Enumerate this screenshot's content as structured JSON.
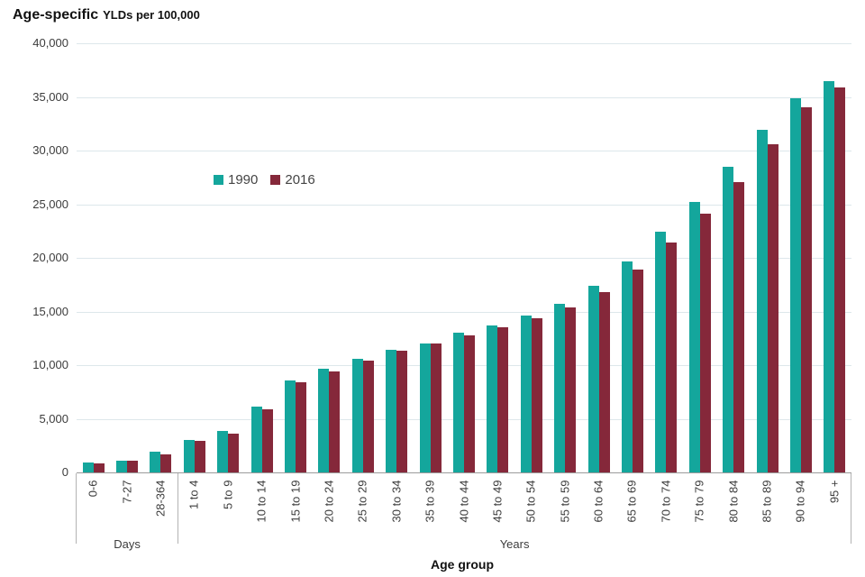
{
  "title": {
    "main": "Age-specific",
    "sub": "YLDs per 100,000"
  },
  "legend": [
    {
      "label": "1990",
      "color": "#14a69c"
    },
    {
      "label": "2016",
      "color": "#85283a"
    }
  ],
  "y_axis": {
    "ticks": [
      "40,000",
      "35,000",
      "30,000",
      "25,000",
      "20,000",
      "15,000",
      "10,000",
      "5,000",
      "0"
    ]
  },
  "x_axis": {
    "title": "Age group",
    "group_labels": [
      "Days",
      "Years"
    ]
  },
  "colors": {
    "series_1990": "#14a69c",
    "series_2016": "#85283a",
    "gridline": "#dde7eb",
    "axis_line": "#9b9b9b",
    "text": "#3c3c3c"
  },
  "chart_data": {
    "type": "bar",
    "title": "Age-specific YLDs per 100,000",
    "xlabel": "Age group",
    "ylabel": "YLDs per 100,000",
    "ylim": [
      0,
      40000
    ],
    "y_tick_step": 5000,
    "grid": "horizontal",
    "legend_position": "inside-upper-left",
    "categories": [
      "0-6",
      "7-27",
      "28-364",
      "1 to 4",
      "5 to 9",
      "10 to 14",
      "15 to 19",
      "20 to 24",
      "25 to 29",
      "30 to 34",
      "35 to 39",
      "40 to 44",
      "45 to 49",
      "50 to 54",
      "55 to 59",
      "60 to 64",
      "65 to 69",
      "70 to 74",
      "75 to 79",
      "80 to 84",
      "85 to 89",
      "90 to 94",
      "95 +"
    ],
    "category_groups": [
      {
        "label": "Days",
        "span": [
          0,
          2
        ]
      },
      {
        "label": "Years",
        "span": [
          3,
          22
        ]
      }
    ],
    "series": [
      {
        "name": "1990",
        "color": "#14a69c",
        "values": [
          950,
          1100,
          1900,
          3000,
          3850,
          6100,
          8600,
          9650,
          10600,
          11450,
          12050,
          13000,
          13700,
          14600,
          15700,
          17400,
          19700,
          22400,
          25200,
          28450,
          31900,
          34900,
          36500
        ]
      },
      {
        "name": "2016",
        "color": "#85283a",
        "values": [
          850,
          1100,
          1650,
          2900,
          3650,
          5900,
          8400,
          9400,
          10450,
          11350,
          12000,
          12800,
          13550,
          14400,
          15350,
          16800,
          18900,
          21400,
          24100,
          27100,
          30600,
          34000,
          35900
        ]
      }
    ]
  }
}
